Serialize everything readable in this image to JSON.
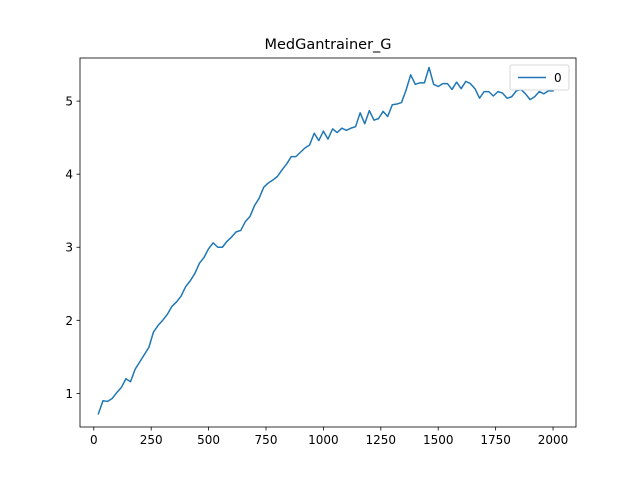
{
  "chart_data": {
    "type": "line",
    "title": "MedGantrainer_G",
    "xlabel": "",
    "ylabel": "",
    "xlim": [
      -60,
      2100
    ],
    "ylim": [
      0.54,
      5.59
    ],
    "xticks": [
      0,
      250,
      500,
      750,
      1000,
      1250,
      1500,
      1750,
      2000
    ],
    "yticks": [
      1,
      2,
      3,
      4,
      5
    ],
    "grid": false,
    "legend": "top-right",
    "series_color": "#1f77b4",
    "series": [
      {
        "name": "0",
        "x": [
          20,
          40,
          60,
          80,
          100,
          120,
          140,
          160,
          180,
          200,
          220,
          240,
          260,
          280,
          300,
          320,
          340,
          360,
          380,
          400,
          420,
          440,
          460,
          480,
          500,
          520,
          540,
          560,
          580,
          600,
          620,
          640,
          660,
          680,
          700,
          720,
          740,
          760,
          780,
          800,
          820,
          840,
          860,
          880,
          900,
          920,
          940,
          960,
          980,
          1000,
          1020,
          1040,
          1060,
          1080,
          1100,
          1120,
          1140,
          1160,
          1180,
          1200,
          1220,
          1240,
          1260,
          1280,
          1300,
          1320,
          1340,
          1360,
          1380,
          1400,
          1420,
          1440,
          1460,
          1480,
          1500,
          1520,
          1540,
          1560,
          1580,
          1600,
          1620,
          1640,
          1660,
          1680,
          1700,
          1720,
          1740,
          1760,
          1780,
          1800,
          1820,
          1840,
          1860,
          1880,
          1900,
          1920,
          1940,
          1960,
          1980,
          2000
        ],
        "values": [
          0.72,
          0.9,
          0.89,
          0.93,
          1.01,
          1.08,
          1.2,
          1.16,
          1.33,
          1.43,
          1.53,
          1.63,
          1.84,
          1.93,
          2.0,
          2.08,
          2.19,
          2.25,
          2.33,
          2.46,
          2.54,
          2.64,
          2.78,
          2.86,
          2.98,
          3.06,
          3.0,
          3.0,
          3.08,
          3.14,
          3.21,
          3.23,
          3.35,
          3.42,
          3.57,
          3.67,
          3.82,
          3.88,
          3.92,
          3.97,
          4.06,
          4.14,
          4.24,
          4.24,
          4.3,
          4.36,
          4.4,
          4.56,
          4.46,
          4.59,
          4.48,
          4.62,
          4.57,
          4.63,
          4.6,
          4.63,
          4.65,
          4.84,
          4.69,
          4.87,
          4.74,
          4.76,
          4.86,
          4.79,
          4.95,
          4.96,
          4.98,
          5.15,
          5.36,
          5.23,
          5.25,
          5.25,
          5.46,
          5.23,
          5.2,
          5.24,
          5.24,
          5.16,
          5.26,
          5.17,
          5.27,
          5.24,
          5.17,
          5.04,
          5.13,
          5.13,
          5.07,
          5.13,
          5.11,
          5.04,
          5.06,
          5.14,
          5.16,
          5.1,
          5.02,
          5.06,
          5.13,
          5.1,
          5.14,
          5.14
        ]
      }
    ]
  }
}
